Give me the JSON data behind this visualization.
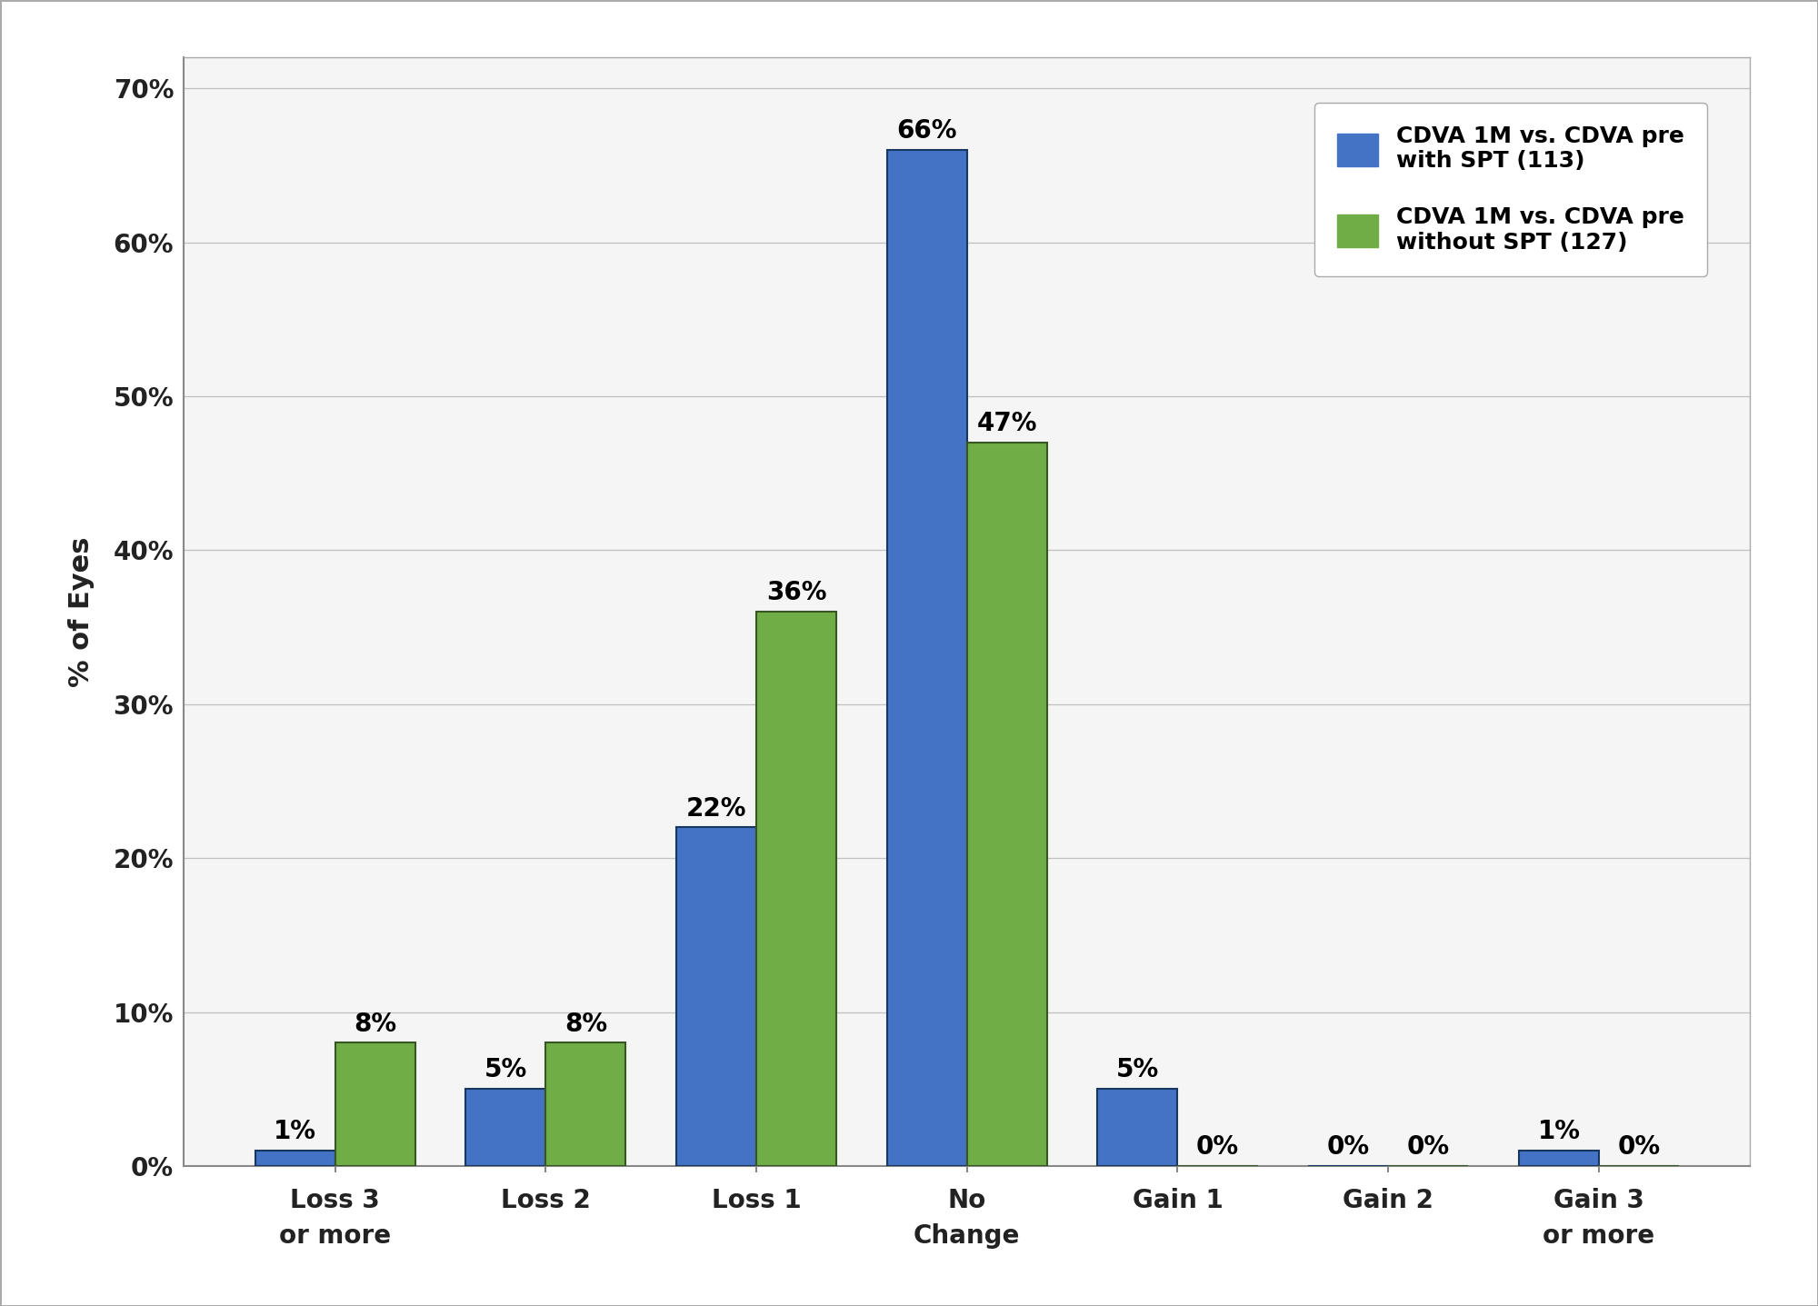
{
  "categories": [
    "Loss 3\nor more",
    "Loss 2",
    "Loss 1",
    "No\nChange",
    "Gain 1",
    "Gain 2",
    "Gain 3\nor more"
  ],
  "blue_values": [
    1,
    5,
    22,
    66,
    5,
    0,
    1
  ],
  "green_values": [
    8,
    8,
    36,
    47,
    0,
    0,
    0
  ],
  "blue_color": "#4472C4",
  "green_color": "#70AD47",
  "blue_edge_color": "#17375E",
  "green_edge_color": "#375623",
  "blue_label": "CDVA 1M vs. CDVA pre\nwith SPT (113)",
  "green_label": "CDVA 1M vs. CDVA pre\nwithout SPT (127)",
  "ylabel": "% of Eyes",
  "ylim": [
    0,
    72
  ],
  "yticks": [
    0,
    10,
    20,
    30,
    40,
    50,
    60,
    70
  ],
  "ytick_labels": [
    "0%",
    "10%",
    "20%",
    "30%",
    "40%",
    "50%",
    "60%",
    "70%"
  ],
  "bar_width": 0.38,
  "background_color": "#FFFFFF",
  "plot_bg_color": "#F5F5F5",
  "grid_color": "#C0C0C0",
  "outer_border_color": "#AAAAAA",
  "label_fontsize": 22,
  "tick_fontsize": 20,
  "legend_fontsize": 18,
  "annotation_fontsize": 20
}
